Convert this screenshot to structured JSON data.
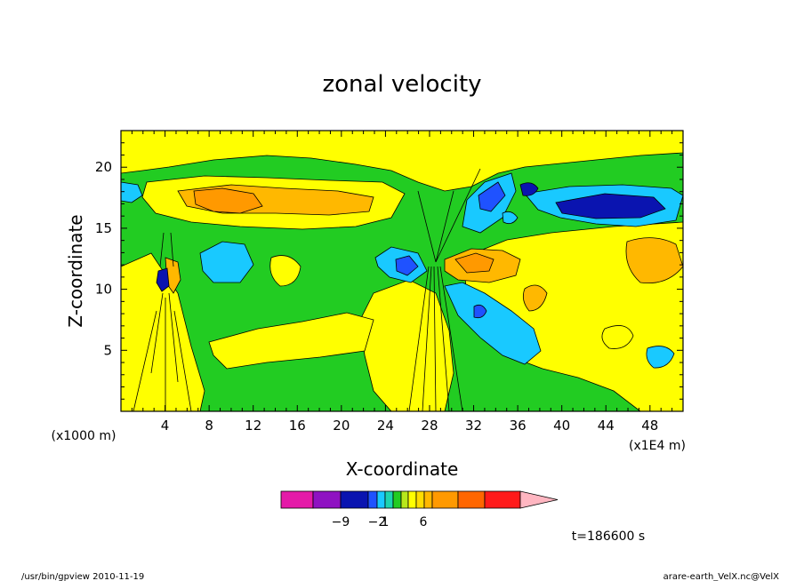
{
  "chart_data": {
    "type": "heatmap",
    "title": "zonal velocity",
    "xlabel": "X-coordinate",
    "ylabel": "Z-coordinate",
    "x_unit": "(x1E4 m)",
    "y_unit": "(x1000 m)",
    "x_ticks": [
      4,
      8,
      12,
      16,
      20,
      24,
      28,
      32,
      36,
      40,
      44,
      48
    ],
    "y_ticks": [
      5,
      10,
      15,
      20
    ],
    "xlim": [
      0,
      51
    ],
    "ylim": [
      0,
      23
    ],
    "grid": false,
    "colorbar": {
      "tick_labels": [
        {
          "value": -9,
          "label": "−9"
        },
        {
          "value": -2,
          "label": "−2"
        },
        {
          "value": 1,
          "label": "1"
        },
        {
          "value": 6,
          "label": "6"
        }
      ],
      "colors": [
        "#e41aa8",
        "#8f12c2",
        "#0a14b0",
        "#1f52ff",
        "#19c9ff",
        "#1cd4b0",
        "#22cc22",
        "#b8e81c",
        "#ffff00",
        "#ffdd00",
        "#ffb800",
        "#ff9900",
        "#ff6600",
        "#ff1a1a",
        "#ff7878",
        "#ffb6c1"
      ]
    },
    "time_label": "t=186600 s"
  },
  "footer": {
    "left": "/usr/bin/gpview   2010-11-19",
    "right": "arare-earth_VelX.nc@VelX"
  }
}
